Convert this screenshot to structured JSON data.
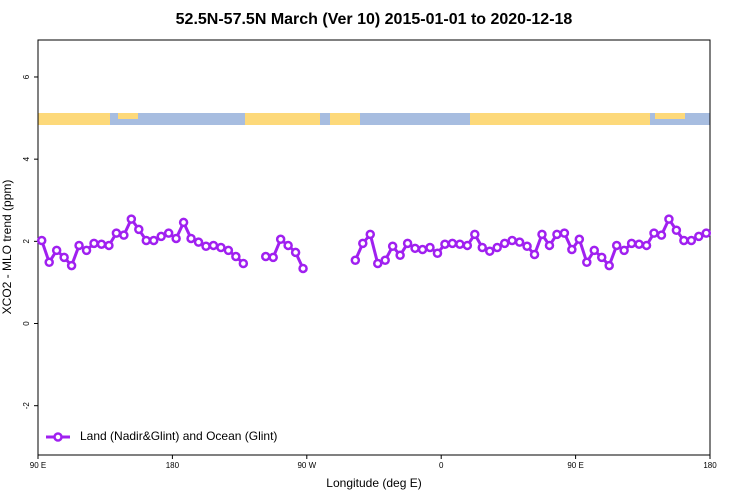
{
  "chart_data": {
    "type": "line",
    "title": "52.5N-57.5N March (Ver 10)   2015-01-01 to 2020-12-18",
    "x_label": "Longitude (deg E)",
    "y_label": "XCO2 - MLO trend (ppm)",
    "x": [
      92.5,
      97.5,
      102.5,
      107.5,
      112.5,
      117.5,
      122.5,
      127.5,
      132.5,
      137.5,
      142.5,
      147.5,
      152.5,
      157.5,
      162.5,
      167.5,
      172.5,
      177.5,
      182.5,
      187.5,
      192.5,
      197.5,
      202.5,
      207.5,
      212.5,
      217.5,
      222.5,
      227.5,
      232.5,
      237.5,
      242.5,
      247.5,
      252.5,
      257.5,
      262.5,
      267.5,
      272.5,
      277.5,
      282.5,
      287.5,
      292.5,
      297.5,
      302.5,
      307.5,
      312.5,
      317.5,
      322.5,
      327.5,
      332.5,
      337.5,
      342.5,
      347.5,
      352.5,
      357.5,
      362.5,
      367.5,
      372.5,
      377.5,
      382.5,
      387.5,
      392.5,
      397.5,
      402.5,
      407.5,
      412.5,
      417.5,
      422.5,
      427.5,
      432.5,
      437.5,
      442.5,
      447.5,
      452.5,
      457.5,
      462.5,
      467.5,
      472.5,
      477.5,
      482.5,
      487.5,
      492.5,
      497.5,
      502.5,
      507.5,
      512.5,
      517.5,
      522.5,
      527.5,
      532.5,
      537.5
    ],
    "series": [
      {
        "name": "Land (Nadir&Glint) and Ocean (Glint)",
        "color": "#a020f0",
        "values": [
          2.02,
          1.49,
          1.78,
          1.61,
          1.41,
          1.9,
          1.78,
          1.95,
          1.93,
          1.9,
          2.2,
          2.15,
          2.54,
          2.29,
          2.02,
          2.02,
          2.12,
          2.2,
          2.07,
          2.46,
          2.07,
          1.98,
          1.88,
          1.9,
          1.85,
          1.78,
          1.63,
          1.46,
          null,
          null,
          1.63,
          1.61,
          2.05,
          1.9,
          1.73,
          1.34,
          null,
          null,
          null,
          null,
          null,
          null,
          1.54,
          1.95,
          2.17,
          1.46,
          1.54,
          1.88,
          1.66,
          1.95,
          1.83,
          1.8,
          1.85,
          1.71,
          1.93,
          1.95,
          1.93,
          1.9,
          2.17,
          1.85,
          1.76,
          1.85,
          1.95,
          2.02,
          1.98,
          1.88,
          1.68,
          2.17,
          1.9,
          2.17,
          2.2,
          1.8,
          2.05,
          1.49,
          1.78,
          1.61,
          1.41,
          1.9,
          1.78,
          1.95,
          1.93,
          1.9,
          2.2,
          2.15,
          2.54,
          2.27,
          2.02,
          2.02,
          2.12,
          2.2
        ]
      }
    ],
    "xlim": [
      90,
      540
    ],
    "xticks": [
      {
        "value": 90,
        "label": "90 E"
      },
      180,
      {
        "value": 270,
        "label": "90 W"
      },
      {
        "value": 360,
        "label": "0"
      },
      {
        "value": 450,
        "label": "90 E"
      },
      {
        "value": 540,
        "label": "180"
      }
    ],
    "ylim": [
      -3.2,
      6.9
    ],
    "yticks": [
      -2,
      0,
      2,
      4,
      6
    ],
    "legend": "bottom left"
  }
}
